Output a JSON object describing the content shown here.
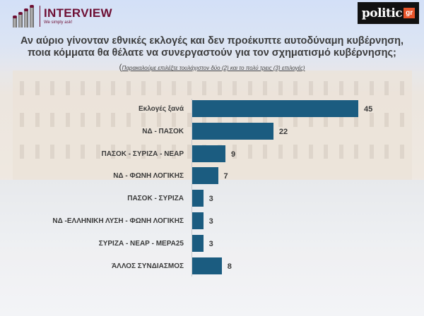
{
  "header": {
    "left_logo": {
      "name": "INTERVIEW",
      "tagline": "We simply ask!"
    },
    "right_logo": {
      "word": "politic",
      "suffix": "gr"
    }
  },
  "title": {
    "line1": "Αν αύριο γίνονταν εθνικές εκλογές και δεν προέκυπτε αυτοδύναμη κυβέρνηση,",
    "line2": "ποια κόμματα θα θέλατε να συνεργαστούν για τον σχηματισμό κυβέρνησης;",
    "note_paren": "(",
    "note": "Παρακαλούμε επιλέξτε τουλάχιστον δύο (2) και το πολύ τρεις (3) επιλογές)"
  },
  "colors": {
    "bar": "#1b5c80",
    "brand_interview": "#6e0f34",
    "brand_politic_accent": "#e8542a"
  },
  "chart_data": {
    "type": "bar",
    "orientation": "horizontal",
    "title": "Αν αύριο γίνονταν εθνικές εκλογές και δεν προέκυπτε αυτοδύναμη κυβέρνηση, ποια κόμματα θα θέλατε να συνεργαστούν για τον σχηματισμό κυβέρνησης;",
    "subtitle": "(Παρακαλούμε επιλέξτε τουλάχιστον δύο (2) και το πολύ τρεις (3) επιλογές)",
    "categories": [
      "Εκλογές ξανά",
      "ΝΔ - ΠΑΣΟΚ",
      "ΠΑΣΟΚ - ΣΥΡΙΖΑ - ΝΕΑΡ",
      "ΝΔ - ΦΩΝΗ ΛΟΓΙΚΗΣ",
      "ΠΑΣΟΚ - ΣΥΡΙΖΑ",
      "ΝΔ -ΕΛΛΗΝΙΚΗ ΛΥΣΗ - ΦΩΝΗ ΛΟΓΙΚΗΣ",
      "ΣΥΡΙΖΑ - ΝΕΑΡ - ΜΕΡΑ25",
      "ΆΛΛΟΣ ΣΥΝΔΙΑΣΜΟΣ"
    ],
    "values": [
      45,
      22,
      9,
      7,
      3,
      3,
      3,
      8
    ],
    "xlabel": "",
    "ylabel": "",
    "xlim": [
      0,
      45
    ],
    "grid": false,
    "legend": null,
    "data_labels": true
  }
}
